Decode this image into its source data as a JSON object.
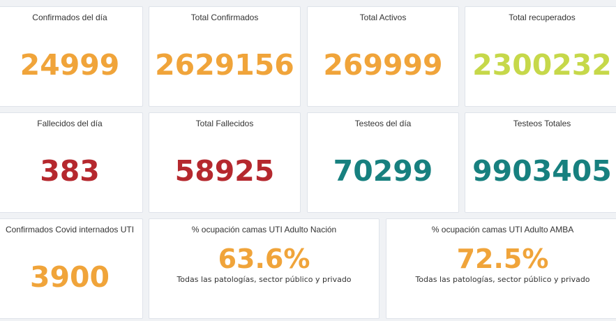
{
  "cards": {
    "confirmados_dia": {
      "title": "Confirmados del día",
      "value": "24999"
    },
    "total_confirmados": {
      "title": "Total Confirmados",
      "value": "2629156"
    },
    "total_activos": {
      "title": "Total Activos",
      "value": "269999"
    },
    "total_recuperados": {
      "title": "Total recuperados",
      "value": "2300232"
    },
    "fallecidos_dia": {
      "title": "Fallecidos del día",
      "value": "383"
    },
    "total_fallecidos": {
      "title": "Total Fallecidos",
      "value": "58925"
    },
    "testeos_dia": {
      "title": "Testeos del día",
      "value": "70299"
    },
    "testeos_totales": {
      "title": "Testeos Totales",
      "value": "9903405"
    },
    "internados_uti": {
      "title": "Confirmados Covid internados UTI",
      "value": "3900"
    },
    "ocupacion_nacion": {
      "title": "% ocupación camas UTI Adulto Nación",
      "value": "63.6%",
      "subtitle": "Todas las patologías, sector público y privado"
    },
    "ocupacion_amba": {
      "title": "% ocupación camas UTI Adulto AMBA",
      "value": "72.5%",
      "subtitle": "Todas las patologías, sector público y privado"
    }
  },
  "colors": {
    "orange": "#f0a43a",
    "green": "#c6d84a",
    "red": "#b5282e",
    "teal": "#17807f"
  }
}
